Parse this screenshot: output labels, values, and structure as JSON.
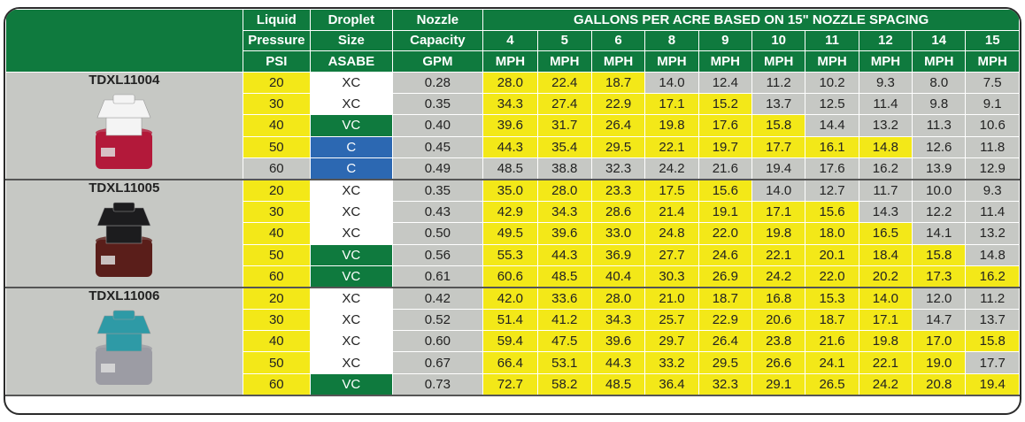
{
  "table": {
    "header": {
      "columns": [
        {
          "lines": [
            "Liquid",
            "Pressure",
            "PSI"
          ]
        },
        {
          "lines": [
            "Droplet",
            "Size",
            "ASABE"
          ]
        },
        {
          "lines": [
            "Nozzle",
            "Capacity",
            "GPM"
          ]
        }
      ],
      "span_title": "GALLONS PER ACRE BASED ON 15\" NOZZLE SPACING",
      "speeds": [
        {
          "speed": "4",
          "unit": "MPH"
        },
        {
          "speed": "5",
          "unit": "MPH"
        },
        {
          "speed": "6",
          "unit": "MPH"
        },
        {
          "speed": "8",
          "unit": "MPH"
        },
        {
          "speed": "9",
          "unit": "MPH"
        },
        {
          "speed": "10",
          "unit": "MPH"
        },
        {
          "speed": "11",
          "unit": "MPH"
        },
        {
          "speed": "12",
          "unit": "MPH"
        },
        {
          "speed": "14",
          "unit": "MPH"
        },
        {
          "speed": "15",
          "unit": "MPH"
        }
      ]
    },
    "groups": [
      {
        "name": "TDXL11004",
        "rows": [
          [
            "20",
            "XC",
            "0.28",
            [
              "28.0",
              "22.4",
              "18.7",
              "14.0",
              "12.4",
              "11.2",
              "10.2",
              "9.3",
              "8.0",
              "7.5"
            ]
          ],
          [
            "30",
            "XC",
            "0.35",
            [
              "34.3",
              "27.4",
              "22.9",
              "17.1",
              "15.2",
              "13.7",
              "12.5",
              "11.4",
              "9.8",
              "9.1"
            ]
          ],
          [
            "40",
            "VC",
            "0.40",
            [
              "39.6",
              "31.7",
              "26.4",
              "19.8",
              "17.6",
              "15.8",
              "14.4",
              "13.2",
              "11.3",
              "10.6"
            ]
          ],
          [
            "50",
            "C",
            "0.45",
            [
              "44.3",
              "35.4",
              "29.5",
              "22.1",
              "19.7",
              "17.7",
              "16.1",
              "14.8",
              "12.6",
              "11.8"
            ]
          ],
          [
            "60",
            "C",
            "0.49",
            [
              "48.5",
              "38.8",
              "32.3",
              "24.2",
              "21.6",
              "19.4",
              "17.6",
              "16.2",
              "13.9",
              "12.9"
            ]
          ]
        ]
      },
      {
        "name": "TDXL11005",
        "rows": [
          [
            "20",
            "XC",
            "0.35",
            [
              "35.0",
              "28.0",
              "23.3",
              "17.5",
              "15.6",
              "14.0",
              "12.7",
              "11.7",
              "10.0",
              "9.3"
            ]
          ],
          [
            "30",
            "XC",
            "0.43",
            [
              "42.9",
              "34.3",
              "28.6",
              "21.4",
              "19.1",
              "17.1",
              "15.6",
              "14.3",
              "12.2",
              "11.4"
            ]
          ],
          [
            "40",
            "XC",
            "0.50",
            [
              "49.5",
              "39.6",
              "33.0",
              "24.8",
              "22.0",
              "19.8",
              "18.0",
              "16.5",
              "14.1",
              "13.2"
            ]
          ],
          [
            "50",
            "VC",
            "0.56",
            [
              "55.3",
              "44.3",
              "36.9",
              "27.7",
              "24.6",
              "22.1",
              "20.1",
              "18.4",
              "15.8",
              "14.8"
            ]
          ],
          [
            "60",
            "VC",
            "0.61",
            [
              "60.6",
              "48.5",
              "40.4",
              "30.3",
              "26.9",
              "24.2",
              "22.0",
              "20.2",
              "17.3",
              "16.2"
            ]
          ]
        ]
      },
      {
        "name": "TDXL11006",
        "rows": [
          [
            "20",
            "XC",
            "0.42",
            [
              "42.0",
              "33.6",
              "28.0",
              "21.0",
              "18.7",
              "16.8",
              "15.3",
              "14.0",
              "12.0",
              "11.2"
            ]
          ],
          [
            "30",
            "XC",
            "0.52",
            [
              "51.4",
              "41.2",
              "34.3",
              "25.7",
              "22.9",
              "20.6",
              "18.7",
              "17.1",
              "14.7",
              "13.7"
            ]
          ],
          [
            "40",
            "XC",
            "0.60",
            [
              "59.4",
              "47.5",
              "39.6",
              "29.7",
              "26.4",
              "23.8",
              "21.6",
              "19.8",
              "17.0",
              "15.8"
            ]
          ],
          [
            "50",
            "XC",
            "0.67",
            [
              "66.4",
              "53.1",
              "44.3",
              "33.2",
              "29.5",
              "26.6",
              "24.1",
              "22.1",
              "19.0",
              "17.7"
            ]
          ],
          [
            "60",
            "VC",
            "0.73",
            [
              "72.7",
              "58.2",
              "48.5",
              "36.4",
              "32.3",
              "29.1",
              "26.5",
              "24.2",
              "20.8",
              "19.4"
            ]
          ]
        ]
      }
    ]
  }
}
